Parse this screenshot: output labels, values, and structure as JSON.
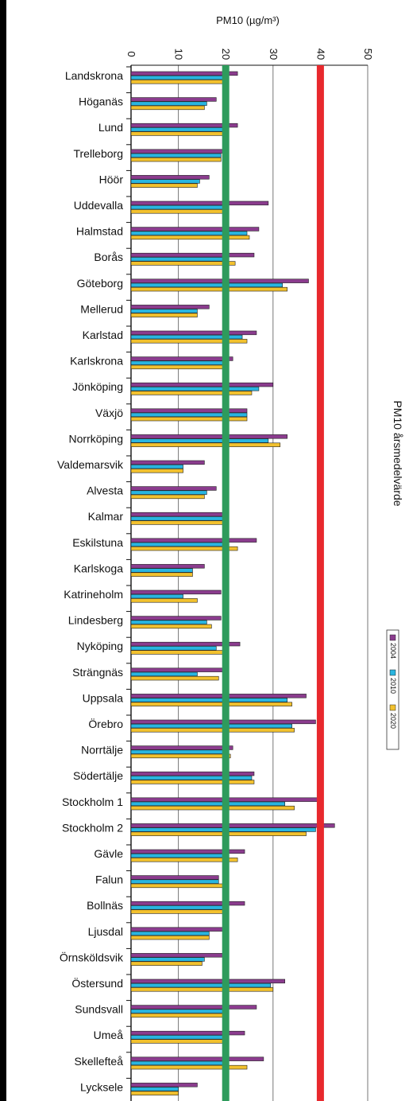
{
  "chart_data": {
    "type": "bar",
    "orientation": "horizontal",
    "title": "PM10 årsmedelvärde",
    "xlabel": "PM10 (µg/m³)",
    "xlim": [
      0,
      50
    ],
    "xticks": [
      "0",
      "10",
      "20",
      "30",
      "40",
      "50"
    ],
    "grid": true,
    "legend_position": "right",
    "reference_lines": [
      {
        "value": 20,
        "color": "#2e9b5c"
      },
      {
        "value": 40,
        "color": "#e8282d"
      }
    ],
    "categories": [
      "Landskrona",
      "Höganäs",
      "Lund",
      "Trelleborg",
      "Höör",
      "Uddevalla",
      "Halmstad",
      "Borås",
      "Göteborg",
      "Mellerud",
      "Karlstad",
      "Karlskrona",
      "Jönköping",
      "Växjö",
      "Norrköping",
      "Valdemarsvik",
      "Alvesta",
      "Kalmar",
      "Eskilstuna",
      "Karlskoga",
      "Katrineholm",
      "Lindesberg",
      "Nyköping",
      "Strängnäs",
      "Uppsala",
      "Örebro",
      "Norrtälje",
      "Södertälje",
      "Stockholm 1",
      "Stockholm 2",
      "Gävle",
      "Falun",
      "Bollnäs",
      "Ljusdal",
      "Örnsköldsvik",
      "Östersund",
      "Sundsvall",
      "Umeå",
      "Skellefteå",
      "Lycksele"
    ],
    "series": [
      {
        "name": "2004",
        "color": "#8b3c8e",
        "values": [
          22.5,
          18,
          22.5,
          20,
          16.5,
          29,
          27,
          26,
          37.5,
          16.5,
          26.5,
          21.5,
          30,
          24.5,
          33,
          15.5,
          18,
          20,
          26.5,
          15.5,
          19,
          19,
          23,
          20,
          37,
          39,
          21.5,
          26,
          40,
          43,
          24,
          18.5,
          24,
          20,
          20,
          32.5,
          26.5,
          24,
          28,
          14
        ]
      },
      {
        "name": "2010",
        "color": "#29b5e0",
        "values": [
          19.5,
          16,
          20,
          19,
          14.5,
          20,
          24.5,
          20,
          32,
          14,
          23.5,
          20,
          27,
          24.5,
          29,
          11,
          16,
          20,
          20,
          13,
          11,
          16,
          18,
          14,
          33,
          34,
          20,
          25.5,
          32.5,
          39,
          20,
          18.5,
          20,
          16.5,
          15.5,
          29.5,
          20,
          20,
          20,
          10
        ]
      },
      {
        "name": "2020",
        "color": "#f2c12e",
        "values": [
          20,
          15.5,
          20,
          19,
          14,
          20,
          25,
          22,
          33,
          14,
          24.5,
          20.5,
          25.5,
          24.5,
          31.5,
          11,
          15.5,
          20,
          22.5,
          13,
          14,
          17,
          20.5,
          18.5,
          34,
          34.5,
          21,
          26,
          34.5,
          37,
          22.5,
          20,
          20,
          16.5,
          15,
          30,
          20,
          20,
          24.5,
          10
        ]
      }
    ]
  },
  "colors": {
    "frame": "#000000",
    "background": "#ffffff",
    "gridline": "#777777",
    "bar_outline": "#222222"
  }
}
